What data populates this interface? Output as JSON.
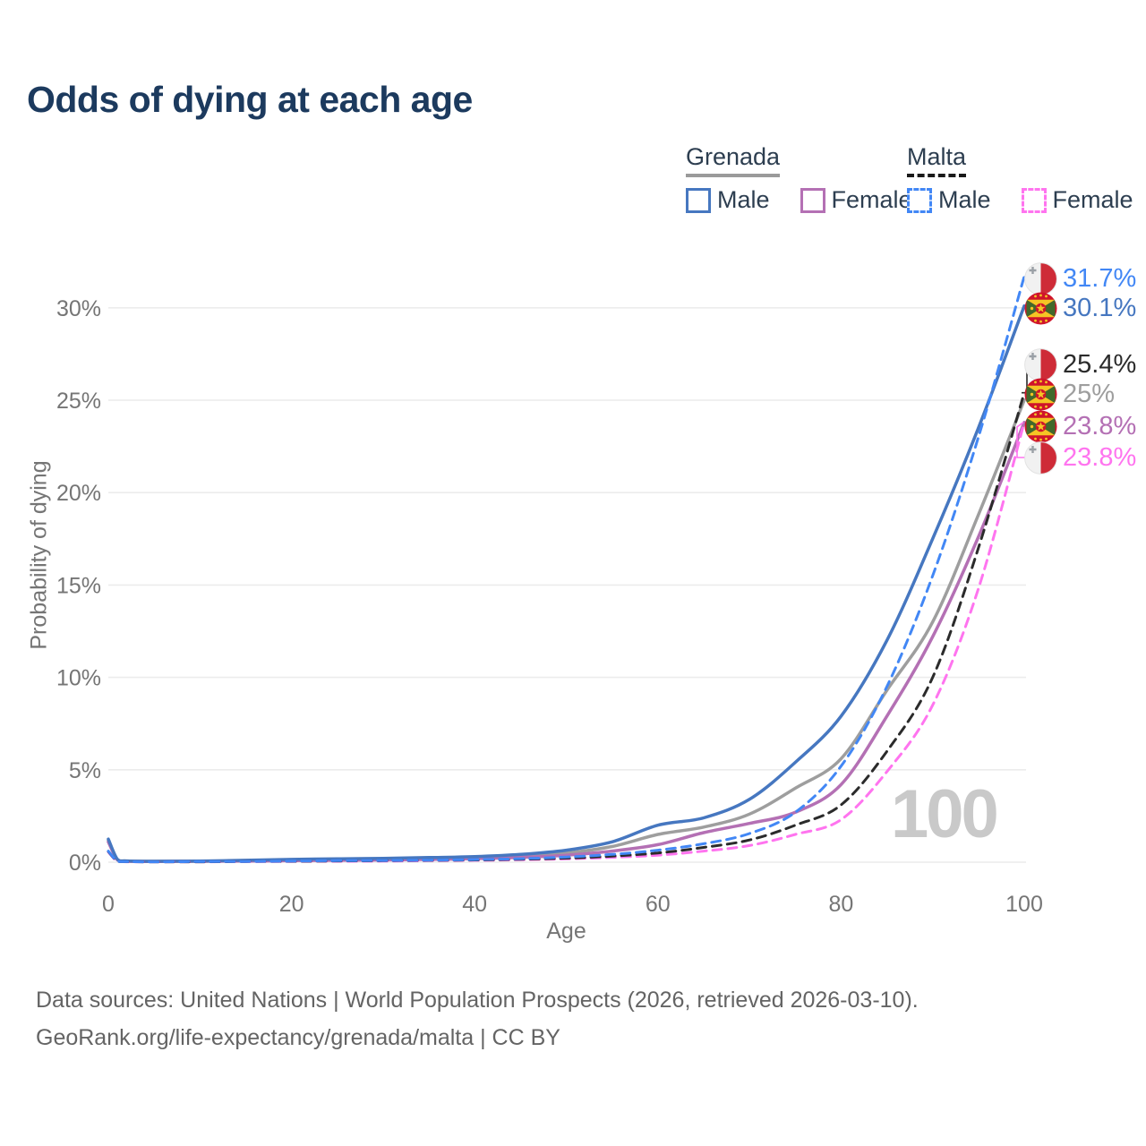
{
  "title": "Odds of dying at each age",
  "legend": {
    "groups": [
      {
        "name": "Grenada",
        "style": "solid",
        "line_color": "#9a9a9a",
        "items": [
          {
            "label": "Male",
            "color": "#4677c0"
          },
          {
            "label": "Female",
            "color": "#b470b4"
          }
        ]
      },
      {
        "name": "Malta",
        "style": "dashed",
        "line_color": "#1a1a1a",
        "items": [
          {
            "label": "Male",
            "color": "#4287f5"
          },
          {
            "label": "Female",
            "color": "#ff74ef"
          }
        ]
      }
    ]
  },
  "chart_data": {
    "type": "line",
    "title": "Odds of dying at each age",
    "xlabel": "Age",
    "ylabel": "Probability of dying",
    "xlim": [
      0,
      100
    ],
    "ylim": [
      0,
      33
    ],
    "x_ticks": [
      0,
      20,
      40,
      60,
      80,
      100
    ],
    "y_ticks": [
      "0%",
      "5%",
      "10%",
      "15%",
      "20%",
      "25%",
      "30%"
    ],
    "grid": "horizontal",
    "hover_age_label": "100",
    "ages": [
      0,
      1,
      2,
      5,
      10,
      15,
      20,
      25,
      30,
      35,
      40,
      45,
      50,
      55,
      60,
      65,
      70,
      75,
      80,
      85,
      90,
      95,
      100
    ],
    "series": [
      {
        "name": "Grenada Total",
        "country": "Grenada",
        "sex": "Both",
        "style": "solid",
        "color": "#9e9e9e",
        "values": [
          1.18,
          0.13,
          0.06,
          0.05,
          0.05,
          0.08,
          0.11,
          0.13,
          0.16,
          0.19,
          0.24,
          0.33,
          0.5,
          0.85,
          1.5,
          1.9,
          2.6,
          4.0,
          5.6,
          9.3,
          13.0,
          18.8,
          25.0
        ]
      },
      {
        "name": "Grenada Female",
        "country": "Grenada",
        "sex": "Female",
        "style": "solid",
        "color": "#b470b4",
        "values": [
          1.1,
          0.12,
          0.05,
          0.04,
          0.05,
          0.06,
          0.08,
          0.1,
          0.12,
          0.15,
          0.19,
          0.26,
          0.38,
          0.6,
          0.95,
          1.6,
          2.1,
          2.7,
          4.2,
          7.9,
          12.2,
          17.6,
          23.8
        ]
      },
      {
        "name": "Grenada Male",
        "country": "Grenada",
        "sex": "Male",
        "style": "solid",
        "color": "#4677c0",
        "values": [
          1.25,
          0.15,
          0.07,
          0.05,
          0.06,
          0.1,
          0.15,
          0.18,
          0.21,
          0.25,
          0.3,
          0.42,
          0.65,
          1.1,
          2.0,
          2.4,
          3.4,
          5.4,
          7.9,
          12.0,
          17.5,
          23.5,
          30.1
        ]
      },
      {
        "name": "Malta Female",
        "country": "Malta",
        "sex": "Female",
        "style": "dashed",
        "color": "#ff74ef",
        "values": [
          0.55,
          0.04,
          0.02,
          0.02,
          0.02,
          0.03,
          0.04,
          0.05,
          0.06,
          0.08,
          0.1,
          0.13,
          0.18,
          0.26,
          0.38,
          0.6,
          0.9,
          1.5,
          2.3,
          4.9,
          8.5,
          14.8,
          23.8
        ]
      },
      {
        "name": "Malta Total",
        "country": "Malta",
        "sex": "Both",
        "style": "dashed",
        "color": "#2b2b2b",
        "values": [
          0.58,
          0.05,
          0.03,
          0.02,
          0.02,
          0.04,
          0.05,
          0.07,
          0.08,
          0.1,
          0.12,
          0.16,
          0.22,
          0.33,
          0.5,
          0.8,
          1.2,
          2.0,
          3.1,
          6.0,
          10.0,
          17.0,
          25.4
        ]
      },
      {
        "name": "Malta Male",
        "country": "Malta",
        "sex": "Male",
        "style": "dashed",
        "color": "#4287f5",
        "values": [
          0.6,
          0.05,
          0.03,
          0.02,
          0.03,
          0.04,
          0.06,
          0.08,
          0.09,
          0.11,
          0.14,
          0.19,
          0.28,
          0.42,
          0.65,
          1.0,
          1.55,
          2.7,
          5.2,
          9.5,
          15.5,
          23.0,
          31.7
        ]
      }
    ],
    "end_labels": [
      {
        "series": "Malta Male",
        "text": "31.7%",
        "color": "#4287f5",
        "flag": "malta"
      },
      {
        "series": "Grenada Male",
        "text": "30.1%",
        "color": "#4677c0",
        "flag": "grenada"
      },
      {
        "series": "Malta Total",
        "text": "25.4%",
        "color": "#2b2b2b",
        "flag": "malta"
      },
      {
        "series": "Grenada Total",
        "text": "25%",
        "color": "#9e9e9e",
        "flag": "grenada"
      },
      {
        "series": "Grenada Female",
        "text": "23.8%",
        "color": "#b470b4",
        "flag": "grenada"
      },
      {
        "series": "Malta Female",
        "text": "23.8%",
        "color": "#ff74ef",
        "flag": "malta"
      }
    ]
  },
  "footer": {
    "line1": "Data sources: United Nations | World Population Prospects (2026, retrieved 2026-03-10).",
    "line2": "GeoRank.org/life-expectancy/grenada/malta | CC BY"
  },
  "colors": {
    "title_text": "#1c3a5e",
    "axis_text": "#757575",
    "gridline": "#ececec",
    "watermark": "#c9c9c9",
    "footer_text": "#646464"
  }
}
